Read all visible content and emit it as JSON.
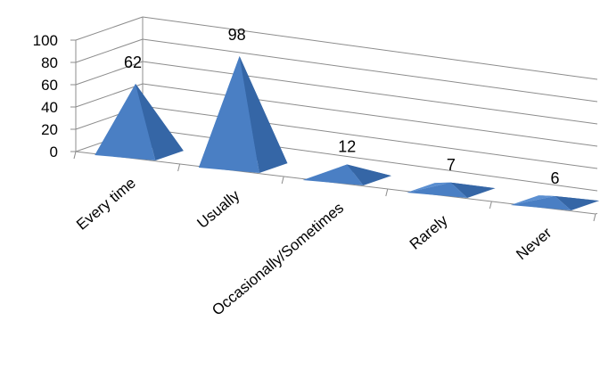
{
  "chart_data": {
    "type": "bar",
    "subtype": "3d-pyramid",
    "categories": [
      "Every time",
      "Usually",
      "Occasionally/Sometimes",
      "Rarely",
      "Never"
    ],
    "values": [
      62,
      98,
      12,
      7,
      6
    ],
    "data_labels": [
      "62",
      "98",
      "12",
      "7",
      "6"
    ],
    "ylim": [
      0,
      100
    ],
    "yticks": [
      0,
      20,
      40,
      60,
      80,
      100
    ],
    "ytick_labels": [
      "0",
      "20",
      "40",
      "60",
      "80",
      "100"
    ],
    "grid": true,
    "legend": "none",
    "bar_color": "#4F81BD"
  }
}
